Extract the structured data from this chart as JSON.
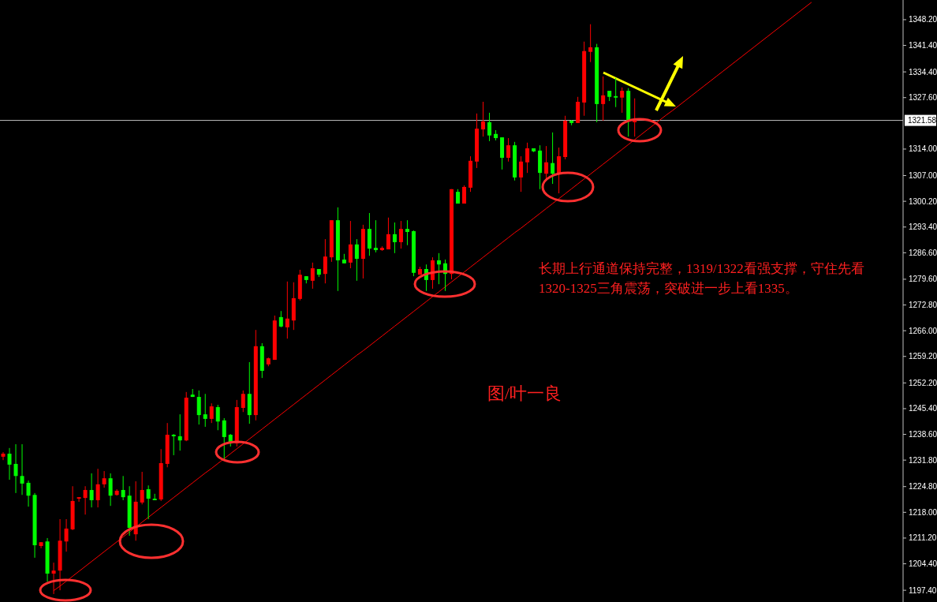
{
  "chart_data": {
    "type": "candlestick",
    "categories": [
      null,
      null,
      null,
      null,
      null,
      null,
      null,
      null,
      null,
      null,
      null,
      null,
      null,
      null,
      null,
      null,
      null,
      null,
      null,
      null,
      null,
      null,
      null,
      null,
      null,
      null,
      null,
      null,
      null,
      null,
      null,
      null,
      null,
      null,
      null,
      null,
      null,
      null,
      null,
      null,
      null,
      null,
      null,
      null,
      null,
      null,
      null,
      null,
      null,
      null,
      null,
      null,
      null,
      null,
      null,
      null,
      null,
      null,
      null,
      null,
      null,
      null,
      null,
      null,
      null,
      null,
      null,
      null,
      null,
      null,
      null,
      null,
      null,
      null,
      null,
      null,
      null,
      null,
      null,
      null,
      null,
      null,
      null,
      null,
      null,
      null,
      null,
      null,
      null,
      null,
      null,
      null,
      null,
      null,
      null,
      null,
      null,
      null,
      null,
      null,
      null,
      null,
      null,
      null,
      null,
      null,
      null,
      null,
      null,
      null,
      null,
      null,
      null,
      null,
      null,
      null,
      null,
      null,
      null,
      null,
      null,
      null,
      null,
      null,
      null,
      null,
      null,
      null,
      null,
      null,
      null,
      null,
      null,
      null,
      null,
      null,
      null,
      null,
      null,
      null,
      null,
      null,
      null
    ],
    "ohlc": [
      [
        1232.7,
        1233.9,
        1231.8,
        1233.5
      ],
      [
        1233.5,
        1235.0,
        1226.6,
        1230.6
      ],
      [
        1230.8,
        1236.0,
        1223.1,
        1227.6
      ],
      [
        1227.6,
        1236.0,
        1222.6,
        1225.6
      ],
      [
        1225.8,
        1226.4,
        1219.5,
        1222.4
      ],
      [
        1222.6,
        1223.1,
        1206.0,
        1209.3
      ],
      [
        1209.1,
        1210.1,
        1208.5,
        1210.1
      ],
      [
        1210.3,
        1211.2,
        1199.7,
        1201.8
      ],
      [
        1201.8,
        1204.7,
        1196.4,
        1202.6
      ],
      [
        1202.6,
        1216.2,
        1197.4,
        1210.5
      ],
      [
        1210.3,
        1216.2,
        1207.6,
        1213.7
      ],
      [
        1213.5,
        1224.9,
        1213.3,
        1221.0
      ],
      [
        1221.6,
        1222.0,
        1220.8,
        1222.0
      ],
      [
        1221.8,
        1224.9,
        1217.4,
        1223.9
      ],
      [
        1223.9,
        1228.3,
        1219.3,
        1221.2
      ],
      [
        1221.2,
        1229.5,
        1219.3,
        1225.4
      ],
      [
        1225.4,
        1228.9,
        1224.5,
        1227.0
      ],
      [
        1227.0,
        1228.3,
        1219.7,
        1222.4
      ],
      [
        1222.6,
        1224.1,
        1222.4,
        1223.7
      ],
      [
        1223.9,
        1227.6,
        1221.2,
        1222.0
      ],
      [
        1222.4,
        1224.9,
        1211.8,
        1213.9
      ],
      [
        1212.2,
        1226.2,
        1210.5,
        1220.8
      ],
      [
        1220.6,
        1228.7,
        1220.1,
        1223.9
      ],
      [
        1224.1,
        1225.1,
        1216.2,
        1221.6
      ],
      [
        1221.6,
        1222.9,
        1221.2,
        1221.2
      ],
      [
        1221.4,
        1234.7,
        1221.0,
        1231.0
      ],
      [
        1230.8,
        1241.6,
        1229.9,
        1238.5
      ],
      [
        1238.5,
        1238.7,
        1233.1,
        1238.1
      ],
      [
        1238.1,
        1243.9,
        1234.3,
        1237.0
      ],
      [
        1237.0,
        1249.8,
        1236.8,
        1248.3
      ],
      [
        1249.1,
        1250.6,
        1248.5,
        1248.5
      ],
      [
        1248.5,
        1250.2,
        1241.2,
        1243.7
      ],
      [
        1243.9,
        1249.3,
        1240.6,
        1242.7
      ],
      [
        1242.7,
        1246.8,
        1241.6,
        1246.0
      ],
      [
        1245.8,
        1246.4,
        1239.7,
        1242.0
      ],
      [
        1242.3,
        1242.9,
        1232.0,
        1237.9
      ],
      [
        1238.5,
        1238.7,
        1235.4,
        1236.4
      ],
      [
        1236.2,
        1247.7,
        1235.4,
        1245.8
      ],
      [
        1245.6,
        1250.2,
        1244.5,
        1249.3
      ],
      [
        1249.3,
        1257.7,
        1241.4,
        1243.7
      ],
      [
        1243.7,
        1266.2,
        1242.3,
        1261.9
      ],
      [
        1261.9,
        1262.7,
        1253.5,
        1255.4
      ],
      [
        1257.1,
        1258.9,
        1256.6,
        1258.7
      ],
      [
        1258.3,
        1270.0,
        1258.3,
        1268.7
      ],
      [
        1269.6,
        1271.2,
        1266.9,
        1267.1
      ],
      [
        1266.9,
        1279.0,
        1263.9,
        1269.2
      ],
      [
        1268.7,
        1278.8,
        1266.2,
        1274.6
      ],
      [
        1274.4,
        1282.1,
        1274.0,
        1280.8
      ],
      [
        1280.4,
        1280.4,
        1278.5,
        1279.4
      ],
      [
        1279.2,
        1284.0,
        1277.1,
        1282.5
      ],
      [
        1282.3,
        1282.3,
        1280.2,
        1280.8
      ],
      [
        1281.0,
        1290.2,
        1278.5,
        1285.6
      ],
      [
        1285.4,
        1295.2,
        1284.2,
        1295.2
      ],
      [
        1295.2,
        1298.6,
        1276.5,
        1284.6
      ],
      [
        1284.8,
        1286.3,
        1283.8,
        1283.8
      ],
      [
        1284.0,
        1295.0,
        1282.5,
        1288.8
      ],
      [
        1288.8,
        1290.2,
        1279.2,
        1285.0
      ],
      [
        1285.0,
        1294.0,
        1279.8,
        1292.9
      ],
      [
        1292.9,
        1297.1,
        1285.8,
        1287.7
      ],
      [
        1287.9,
        1295.2,
        1286.7,
        1287.3
      ],
      [
        1287.3,
        1288.3,
        1287.1,
        1287.9
      ],
      [
        1287.5,
        1295.9,
        1287.5,
        1291.5
      ],
      [
        1291.5,
        1294.6,
        1286.5,
        1289.4
      ],
      [
        1289.4,
        1295.0,
        1287.7,
        1292.9
      ],
      [
        1292.9,
        1295.2,
        1288.6,
        1292.1
      ],
      [
        1292.3,
        1292.5,
        1280.4,
        1281.3
      ],
      [
        1280.8,
        1282.9,
        1280.8,
        1282.3
      ],
      [
        1282.3,
        1283.5,
        1276.5,
        1279.4
      ],
      [
        1279.4,
        1285.4,
        1277.1,
        1284.6
      ],
      [
        1284.6,
        1286.5,
        1278.3,
        1283.5
      ],
      [
        1283.8,
        1284.8,
        1276.5,
        1281.0
      ],
      [
        1281.0,
        1303.4,
        1279.6,
        1303.4
      ],
      [
        1302.7,
        1303.4,
        1299.6,
        1299.6
      ],
      [
        1299.6,
        1304.4,
        1299.6,
        1304.0
      ],
      [
        1303.8,
        1312.1,
        1302.7,
        1310.9
      ],
      [
        1310.7,
        1323.4,
        1309.0,
        1319.4
      ],
      [
        1319.2,
        1326.5,
        1317.3,
        1321.3
      ],
      [
        1321.1,
        1323.6,
        1316.1,
        1317.6
      ],
      [
        1318.0,
        1319.0,
        1316.3,
        1316.9
      ],
      [
        1317.1,
        1317.1,
        1308.6,
        1311.7
      ],
      [
        1311.7,
        1316.9,
        1310.7,
        1315.0
      ],
      [
        1315.0,
        1315.9,
        1305.7,
        1306.5
      ],
      [
        1306.5,
        1312.1,
        1302.7,
        1310.7
      ],
      [
        1310.5,
        1315.7,
        1307.7,
        1314.2
      ],
      [
        1314.2,
        1314.2,
        1313.2,
        1313.4
      ],
      [
        1313.6,
        1315.0,
        1303.4,
        1307.7
      ],
      [
        1307.5,
        1314.8,
        1306.3,
        1310.5
      ],
      [
        1310.3,
        1318.4,
        1304.8,
        1307.5
      ],
      [
        1307.5,
        1314.4,
        1302.3,
        1312.1
      ],
      [
        1311.9,
        1322.8,
        1311.3,
        1321.5
      ],
      [
        1321.5,
        1321.7,
        1320.3,
        1320.9
      ],
      [
        1320.9,
        1327.8,
        1320.9,
        1326.5
      ],
      [
        1326.3,
        1342.4,
        1322.8,
        1339.9
      ],
      [
        1339.7,
        1347.0,
        1337.0,
        1340.9
      ],
      [
        1340.9,
        1341.8,
        1321.1,
        1325.9
      ],
      [
        1325.9,
        1333.2,
        1321.5,
        1328.2
      ],
      [
        1329.4,
        1329.4,
        1326.7,
        1327.8
      ],
      [
        1328.0,
        1332.8,
        1325.1,
        1327.6
      ],
      [
        1327.6,
        1330.3,
        1323.6,
        1329.4
      ],
      [
        1329.4,
        1330.1,
        1317.3,
        1321.5
      ],
      [
        1321.1,
        1327.4,
        1317.3,
        1321.7
      ],
      null,
      null,
      null,
      null,
      null,
      null,
      null,
      null,
      null,
      null,
      null,
      null,
      null,
      null,
      null,
      null,
      null,
      null,
      null,
      null,
      null,
      null,
      null,
      null,
      null,
      null,
      null,
      null,
      null,
      null,
      null,
      null,
      null,
      null,
      null,
      null,
      null,
      null,
      null,
      null,
      null,
      null
    ],
    "colors": [
      "#ff0000",
      "#00ff00",
      "#00ff00",
      "#00ff00",
      "#00ff00",
      "#00ff00",
      "#ff0000",
      "#00ff00",
      "#ff0000",
      "#ff0000",
      "#ff0000",
      "#ff0000",
      "#ff0000",
      "#ff0000",
      "#00ff00",
      "#ff0000",
      "#ff0000",
      "#00ff00",
      "#ff0000",
      "#00ff00",
      "#00ff00",
      "#ff0000",
      "#ff0000",
      "#00ff00",
      "#00ff00",
      "#ff0000",
      "#ff0000",
      "#00ff00",
      "#00ff00",
      "#ff0000",
      "#00ff00",
      "#00ff00",
      "#00ff00",
      "#ff0000",
      "#00ff00",
      "#00ff00",
      "#00ff00",
      "#ff0000",
      "#ff0000",
      "#00ff00",
      "#ff0000",
      "#00ff00",
      "#ff0000",
      "#ff0000",
      "#00ff00",
      "#ff0000",
      "#ff0000",
      "#ff0000",
      "#00ff00",
      "#ff0000",
      "#00ff00",
      "#ff0000",
      "#ff0000",
      "#00ff00",
      "#00ff00",
      "#ff0000",
      "#00ff00",
      "#ff0000",
      "#00ff00",
      "#00ff00",
      "#ff0000",
      "#ff0000",
      "#00ff00",
      "#ff0000",
      "#00ff00",
      "#00ff00",
      "#ff0000",
      "#00ff00",
      "#ff0000",
      "#00ff00",
      "#00ff00",
      "#ff0000",
      "#00ff00",
      "#ff0000",
      "#ff0000",
      "#ff0000",
      "#ff0000",
      "#00ff00",
      "#00ff00",
      "#00ff00",
      "#ff0000",
      "#00ff00",
      "#ff0000",
      "#ff0000",
      "#00ff00",
      "#00ff00",
      "#ff0000",
      "#00ff00",
      "#ff0000",
      "#ff0000",
      "#00ff00",
      "#ff0000",
      "#ff0000",
      "#ff0000",
      "#00ff00",
      "#ff0000",
      "#00ff00",
      "#00ff00",
      "#ff0000",
      "#00ff00",
      "#ff0000",
      null,
      null,
      null,
      null,
      null,
      null,
      null,
      null,
      null,
      null,
      null,
      null,
      null,
      null,
      null,
      null,
      null,
      null,
      null,
      null,
      null,
      null,
      null,
      null,
      null,
      null,
      null,
      null,
      null,
      null,
      null,
      null,
      null,
      null,
      null,
      null,
      null,
      null,
      null,
      null,
      null,
      null
    ],
    "series": [
      {
        "type": "line",
        "color": "#ff0000",
        "values": [
          null,
          null,
          null,
          null,
          null,
          null,
          null,
          null,
          1197.3,
          1198.5,
          1199.8,
          1201.1,
          1202.4,
          1203.7,
          1205.0,
          1206.3,
          1207.6,
          1208.9,
          1210.2,
          1211.5,
          1212.8,
          1214.1,
          1215.4,
          1216.7,
          1218.0,
          1219.3,
          1220.6,
          1221.9,
          1223.2,
          1224.5,
          1225.8,
          1227.1,
          1228.4,
          1229.6,
          1230.9,
          1232.2,
          1233.5,
          1234.8,
          1236.1,
          1237.4,
          1238.7,
          1240.0,
          1241.3,
          1242.6,
          1243.9,
          1245.2,
          1246.5,
          1247.8,
          1249.1,
          1250.4,
          1251.7,
          1253.0,
          1254.3,
          1255.6,
          1256.9,
          1258.2,
          1259.5,
          1260.7,
          1262.0,
          1263.3,
          1264.6,
          1265.9,
          1267.2,
          1268.5,
          1269.8,
          1271.1,
          1272.4,
          1273.7,
          1275.0,
          1276.3,
          1277.6,
          1278.9,
          1280.2,
          1281.5,
          1282.8,
          1284.1,
          1285.4,
          1286.7,
          1288.0,
          1289.3,
          1290.6,
          1291.9,
          1293.1,
          1294.4,
          1295.7,
          1297.0,
          1298.3,
          1299.6,
          1300.9,
          1302.2,
          1303.5,
          1304.8,
          1306.1,
          1307.4,
          1308.7,
          1310.0,
          1311.3,
          1312.6,
          1313.9,
          1315.2,
          1316.5,
          1317.8,
          1319.1,
          1320.4,
          1321.7,
          1323.0,
          1324.2,
          1325.5,
          1326.8,
          1328.1,
          1329.4,
          1330.7,
          1332.0,
          1333.3,
          1334.6,
          1335.9,
          1337.2,
          1338.5,
          1339.8,
          1341.1,
          1342.4,
          1343.7,
          1345.0,
          1346.3,
          1347.6,
          1348.9,
          1350.2,
          1351.5,
          1352.8,
          null,
          null,
          null,
          null,
          null,
          null,
          null,
          null,
          null,
          null,
          null,
          null,
          null,
          null
        ]
      }
    ],
    "ylim": [
      1194.3,
      1353.4
    ],
    "yticks": [
      {
        "value": 1197.4,
        "label": "1197.40"
      },
      {
        "value": 1204.4,
        "label": "1204.40"
      },
      {
        "value": 1211.2,
        "label": "1211.20"
      },
      {
        "value": 1218,
        "label": "1218.00"
      },
      {
        "value": 1224.8,
        "label": "1224.80"
      },
      {
        "value": 1231.8,
        "label": "1231.80"
      },
      {
        "value": 1238.6,
        "label": "1238.60"
      },
      {
        "value": 1245.4,
        "label": "1245.40"
      },
      {
        "value": 1252.2,
        "label": "1252.20"
      },
      {
        "value": 1259.2,
        "label": "1259.20"
      },
      {
        "value": 1266,
        "label": "1266.00"
      },
      {
        "value": 1272.8,
        "label": "1272.80"
      },
      {
        "value": 1279.6,
        "label": "1279.60"
      },
      {
        "value": 1286.6,
        "label": "1286.60"
      },
      {
        "value": 1293.4,
        "label": "1293.40"
      },
      {
        "value": 1300.2,
        "label": "1300.20"
      },
      {
        "value": 1307,
        "label": "1307.00"
      },
      {
        "value": 1314,
        "label": "1314.00"
      },
      {
        "value": 1327.6,
        "label": "1327.60"
      },
      {
        "value": 1334.4,
        "label": "1334.40"
      },
      {
        "value": 1341.4,
        "label": "1341.40"
      },
      {
        "value": 1348.2,
        "label": "1348.20"
      }
    ],
    "tick_labels": "y",
    "ref_lines": [
      {
        "axis": "y",
        "value": 1321.58,
        "label": "1321.58",
        "color": "#c0c0c0"
      }
    ],
    "annotations": [
      "长期上行通道保持完整，1319/1322看强支撑，守住先看1320-1325三角震荡，突破进一步上看1335。",
      "图/叶一良"
    ]
  }
}
